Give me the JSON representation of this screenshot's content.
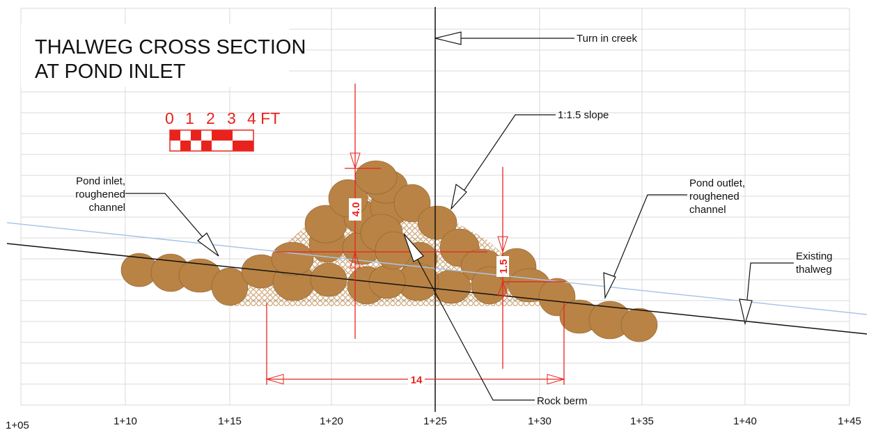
{
  "title": [
    "THALWEG CROSS SECTION",
    "AT POND INLET"
  ],
  "scale": [
    "0",
    "1",
    "2",
    "3",
    "4 FT"
  ],
  "annotations": [
    {
      "lines": [
        "Turn in creek"
      ]
    },
    {
      "lines": [
        "1:1.5 slope"
      ]
    },
    {
      "lines": [
        "Pond inlet,",
        "roughened",
        "channel"
      ]
    },
    {
      "lines": [
        "Pond outlet,",
        "roughened",
        "channel"
      ]
    },
    {
      "lines": [
        "Existing",
        "thalweg"
      ]
    },
    {
      "lines": [
        "Rock berm"
      ]
    }
  ],
  "dimensions": [
    "4.0",
    "1.5",
    "14"
  ],
  "stations": [
    "1+05",
    "1+10",
    "1+15",
    "1+20",
    "1+25",
    "1+30",
    "1+35",
    "1+40",
    "1+45"
  ]
}
